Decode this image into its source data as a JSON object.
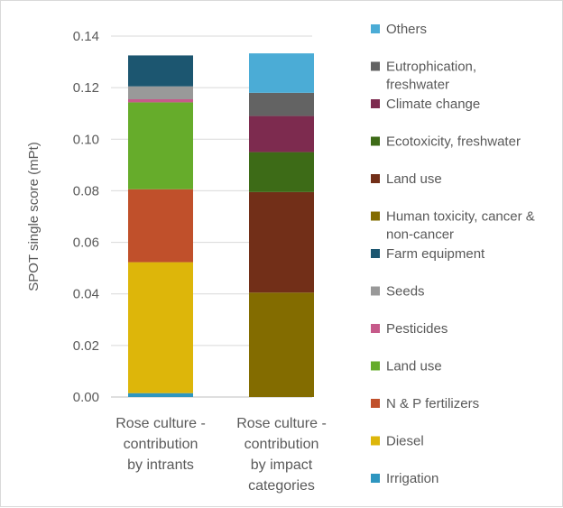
{
  "chart_data": {
    "type": "bar",
    "stacked": true,
    "title": "",
    "ylabel": "SPOT single score (mPt)",
    "xlabel": "",
    "ylim": [
      0,
      0.14
    ],
    "yticks": [
      "0.00",
      "0.02",
      "0.04",
      "0.06",
      "0.08",
      "0.10",
      "0.12",
      "0.14"
    ],
    "grid": true,
    "legend_position": "right",
    "categories": [
      [
        "Rose culture -",
        "contribution",
        "by intrants"
      ],
      [
        "Rose culture -",
        "contribution",
        "by impact",
        "categories"
      ]
    ],
    "series": [
      {
        "name": "Irrigation",
        "color": "#2E96C0",
        "values": [
          0.0015,
          0
        ]
      },
      {
        "name": "Diesel",
        "color": "#DDB60A",
        "values": [
          0.0508,
          0
        ]
      },
      {
        "name": "N & P fertilizers",
        "color": "#C0502B",
        "values": [
          0.0283,
          0
        ]
      },
      {
        "name": "Land use",
        "color": "#66AC2B",
        "values": [
          0.0337,
          0
        ]
      },
      {
        "name": "Pesticides",
        "color": "#C65A8A",
        "values": [
          0.0012,
          0
        ]
      },
      {
        "name": "Seeds",
        "color": "#999999",
        "values": [
          0.005,
          0
        ]
      },
      {
        "name": "Farm equipment",
        "color": "#1C5670",
        "values": [
          0.012,
          0
        ]
      },
      {
        "name": "Human toxicity, cancer & non-cancer",
        "color": "#836C00",
        "values": [
          0,
          0.0405
        ]
      },
      {
        "name": "Land use",
        "color": "#722F18",
        "values": [
          0,
          0.039
        ]
      },
      {
        "name": "Ecotoxicity, freshwater",
        "color": "#3D6B17",
        "values": [
          0,
          0.0155
        ]
      },
      {
        "name": "Climate change",
        "color": "#7D2B4F",
        "values": [
          0,
          0.014
        ]
      },
      {
        "name": "Eutrophication, freshwater",
        "color": "#636363",
        "values": [
          0,
          0.009
        ]
      },
      {
        "name": "Others",
        "color": "#4BACD6",
        "values": [
          0,
          0.0153
        ]
      }
    ],
    "legend": [
      {
        "label": [
          "Others"
        ],
        "color": "#4BACD6"
      },
      {
        "label": [
          "Eutrophication,",
          "freshwater"
        ],
        "color": "#636363"
      },
      {
        "label": [
          "Climate change"
        ],
        "color": "#7D2B4F"
      },
      {
        "label": [
          "Ecotoxicity, freshwater"
        ],
        "color": "#3D6B17"
      },
      {
        "label": [
          "Land use"
        ],
        "color": "#722F18"
      },
      {
        "label": [
          "Human toxicity, cancer &",
          "non-cancer"
        ],
        "color": "#836C00"
      },
      {
        "label": [
          "Farm equipment"
        ],
        "color": "#1C5670"
      },
      {
        "label": [
          "Seeds"
        ],
        "color": "#999999"
      },
      {
        "label": [
          "Pesticides"
        ],
        "color": "#C65A8A"
      },
      {
        "label": [
          "Land use"
        ],
        "color": "#66AC2B"
      },
      {
        "label": [
          "N & P fertilizers"
        ],
        "color": "#C0502B"
      },
      {
        "label": [
          "Diesel"
        ],
        "color": "#DDB60A"
      },
      {
        "label": [
          "Irrigation"
        ],
        "color": "#2E96C0"
      }
    ]
  }
}
